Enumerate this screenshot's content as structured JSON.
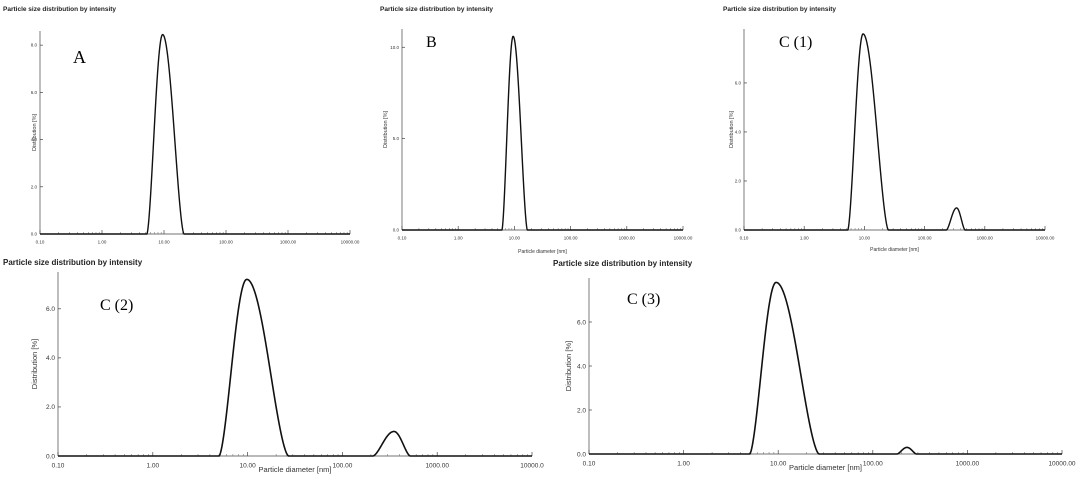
{
  "chart_data": [
    {
      "type": "line",
      "panel_label": "A",
      "title": "Particle size distribution by intensity",
      "xlabel": "",
      "ylabel": "Distribution [%]",
      "x_scale": "log",
      "xlim": [
        0.1,
        10000
      ],
      "ylim": [
        0,
        8.6
      ],
      "x_ticks": [
        "0.10",
        "1.00",
        "10.00",
        "100.00",
        "1000.00",
        "10000.00"
      ],
      "y_ticks": [
        "0.0",
        "2.0",
        "4.0",
        "6.0",
        "8.0"
      ],
      "y_tick_values": [
        0,
        2,
        4,
        6,
        8
      ],
      "x_tick_values": [
        0.1,
        1,
        10,
        100,
        1000,
        10000
      ],
      "series": [
        {
          "peaks": [
            {
              "start": 5.3,
              "peak": 9.5,
              "end": 21,
              "height": 8.45
            }
          ]
        }
      ]
    },
    {
      "type": "line",
      "panel_label": "B",
      "title": "Particle size distribution by intensity",
      "xlabel": "Particle diameter [nm]",
      "ylabel": "Distribution [%]",
      "x_scale": "log",
      "xlim": [
        0.1,
        10000
      ],
      "ylim": [
        0,
        11
      ],
      "x_ticks": [
        "0.10",
        "1.00",
        "10.00",
        "100.00",
        "1000.00",
        "10000.00"
      ],
      "y_ticks": [
        "0.0",
        "5.0",
        "10.0"
      ],
      "y_tick_values": [
        0,
        5,
        10
      ],
      "x_tick_values": [
        0.1,
        1,
        10,
        100,
        1000,
        10000
      ],
      "series": [
        {
          "peaks": [
            {
              "start": 6.0,
              "peak": 9.5,
              "end": 17,
              "height": 10.6
            }
          ]
        }
      ]
    },
    {
      "type": "line",
      "panel_label": "C (1)",
      "title": "Particle size distribution by intensity",
      "xlabel": "Particle diameter [nm]",
      "ylabel": "Distribution [%]",
      "x_scale": "log",
      "xlim": [
        0.1,
        10000
      ],
      "ylim": [
        0,
        8.2
      ],
      "x_ticks": [
        "0.10",
        "1.00",
        "10.00",
        "100.00",
        "1000.00",
        "10000.00"
      ],
      "y_ticks": [
        "0.0",
        "2.0",
        "4.0",
        "6.0"
      ],
      "y_tick_values": [
        0,
        2,
        4,
        6
      ],
      "x_tick_values": [
        0.1,
        1,
        10,
        100,
        1000,
        10000
      ],
      "series": [
        {
          "peaks": [
            {
              "start": 5.3,
              "peak": 9.5,
              "end": 25,
              "height": 8.0
            },
            {
              "start": 230,
              "peak": 340,
              "end": 470,
              "height": 0.9
            }
          ]
        }
      ]
    },
    {
      "type": "line",
      "panel_label": "C (2)",
      "title": "Particle size distribution by intensity",
      "xlabel": "Particle diameter [nm]",
      "ylabel": "Distribution [%]",
      "x_scale": "log",
      "xlim": [
        0.1,
        10000
      ],
      "ylim": [
        0,
        7.5
      ],
      "x_ticks": [
        "0.10",
        "1.00",
        "10.00",
        "100.00",
        "1000.00",
        "10000.0"
      ],
      "y_ticks": [
        "0.0",
        "2.0",
        "4.0",
        "6.0"
      ],
      "y_tick_values": [
        0,
        2,
        4,
        6
      ],
      "x_tick_values": [
        0.1,
        1,
        10,
        100,
        1000,
        10000
      ],
      "series": [
        {
          "peaks": [
            {
              "start": 5.0,
              "peak": 9.8,
              "end": 27,
              "height": 7.2
            },
            {
              "start": 210,
              "peak": 350,
              "end": 520,
              "height": 1.0
            }
          ]
        }
      ]
    },
    {
      "type": "line",
      "panel_label": "C (3)",
      "title": "Particle size distribution by intensity",
      "xlabel": "Particle diameter [nm]",
      "ylabel": "Distribution [%]",
      "x_scale": "log",
      "xlim": [
        0.1,
        10000
      ],
      "ylim": [
        0,
        8.0
      ],
      "x_ticks": [
        "0.10",
        "1.00",
        "10.00",
        "100.00",
        "1000.00",
        "10000.00"
      ],
      "y_ticks": [
        "0.0",
        "2.0",
        "4.0",
        "6.0"
      ],
      "y_tick_values": [
        0,
        2,
        4,
        6
      ],
      "x_tick_values": [
        0.1,
        1,
        10,
        100,
        1000,
        10000
      ],
      "series": [
        {
          "peaks": [
            {
              "start": 5.0,
              "peak": 9.5,
              "end": 27,
              "height": 7.8
            },
            {
              "start": 180,
              "peak": 230,
              "end": 290,
              "height": 0.3
            }
          ]
        }
      ]
    }
  ]
}
